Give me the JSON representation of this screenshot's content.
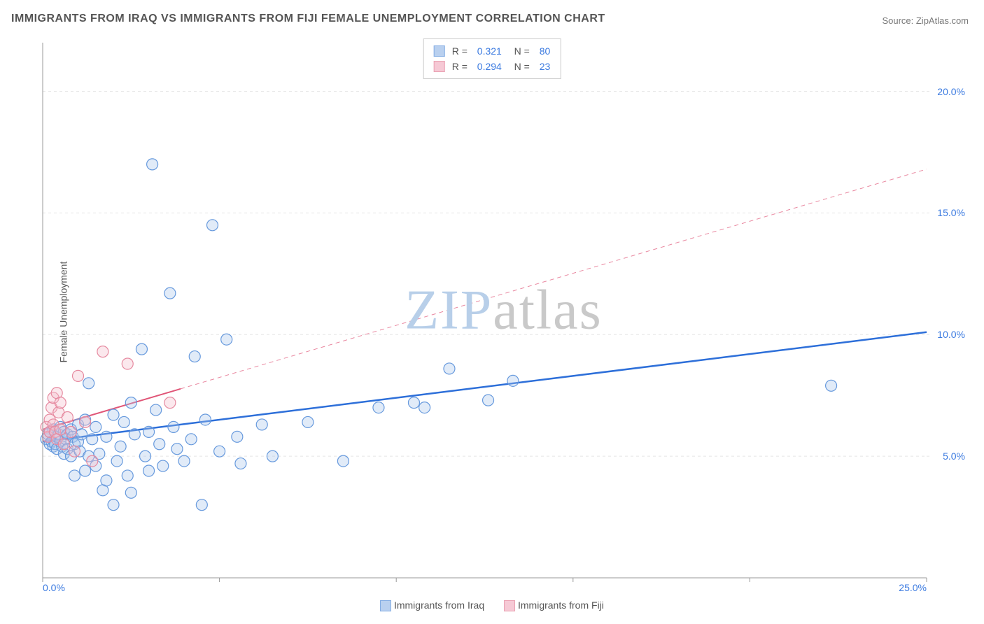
{
  "title": "IMMIGRANTS FROM IRAQ VS IMMIGRANTS FROM FIJI FEMALE UNEMPLOYMENT CORRELATION CHART",
  "source_label": "Source: ZipAtlas.com",
  "y_axis_label": "Female Unemployment",
  "watermark": {
    "zip": "ZIP",
    "atlas": "atlas",
    "color_zip": "#b8cfe9",
    "color_atlas": "#c9c9c9"
  },
  "chart": {
    "type": "scatter",
    "xlim": [
      0,
      25
    ],
    "ylim": [
      0,
      22
    ],
    "x_ticks": [
      0,
      5,
      10,
      15,
      20,
      25
    ],
    "y_ticks": [
      5,
      10,
      15,
      20
    ],
    "x_tick_labels": {
      "0": "0.0%",
      "25": "25.0%"
    },
    "y_tick_labels": {
      "5": "5.0%",
      "10": "10.0%",
      "15": "15.0%",
      "20": "20.0%"
    },
    "background_color": "#ffffff",
    "grid_color": "#e5e5e5",
    "grid_dash": "4,4",
    "axis_line_color": "#999999",
    "tick_mark_color": "#999999",
    "axis_label_color": "#3b7ae0",
    "marker_radius": 8,
    "marker_stroke_width": 1.2,
    "marker_fill_opacity": 0.35,
    "series": [
      {
        "name": "Immigrants from Iraq",
        "color_stroke": "#6699dd",
        "color_fill": "#a8c5ec",
        "trend_color": "#2d6fd9",
        "trend_width": 2.5,
        "trend_dashed_after_x": 25,
        "trend": {
          "x1": 0,
          "y1": 5.6,
          "x2": 25,
          "y2": 10.1
        },
        "r_value": "0.321",
        "n_value": "80",
        "points": [
          [
            0.1,
            5.7
          ],
          [
            0.15,
            5.9
          ],
          [
            0.2,
            5.5
          ],
          [
            0.2,
            6.0
          ],
          [
            0.25,
            5.6
          ],
          [
            0.3,
            5.4
          ],
          [
            0.3,
            6.1
          ],
          [
            0.35,
            5.5
          ],
          [
            0.4,
            5.8
          ],
          [
            0.4,
            5.3
          ],
          [
            0.45,
            5.9
          ],
          [
            0.5,
            5.6
          ],
          [
            0.5,
            6.2
          ],
          [
            0.55,
            5.4
          ],
          [
            0.6,
            5.1
          ],
          [
            0.6,
            6.0
          ],
          [
            0.65,
            5.7
          ],
          [
            0.7,
            5.9
          ],
          [
            0.7,
            5.3
          ],
          [
            0.8,
            5.0
          ],
          [
            0.8,
            6.1
          ],
          [
            0.85,
            5.8
          ],
          [
            0.9,
            5.5
          ],
          [
            0.9,
            4.2
          ],
          [
            1.0,
            5.6
          ],
          [
            1.0,
            6.3
          ],
          [
            1.05,
            5.2
          ],
          [
            1.1,
            5.9
          ],
          [
            1.2,
            4.4
          ],
          [
            1.2,
            6.5
          ],
          [
            1.3,
            5.0
          ],
          [
            1.3,
            8.0
          ],
          [
            1.4,
            5.7
          ],
          [
            1.5,
            4.6
          ],
          [
            1.5,
            6.2
          ],
          [
            1.6,
            5.1
          ],
          [
            1.7,
            3.6
          ],
          [
            1.8,
            5.8
          ],
          [
            1.8,
            4.0
          ],
          [
            2.0,
            3.0
          ],
          [
            2.0,
            6.7
          ],
          [
            2.1,
            4.8
          ],
          [
            2.2,
            5.4
          ],
          [
            2.3,
            6.4
          ],
          [
            2.4,
            4.2
          ],
          [
            2.5,
            3.5
          ],
          [
            2.5,
            7.2
          ],
          [
            2.6,
            5.9
          ],
          [
            2.8,
            9.4
          ],
          [
            2.9,
            5.0
          ],
          [
            3.0,
            6.0
          ],
          [
            3.0,
            4.4
          ],
          [
            3.1,
            17.0
          ],
          [
            3.2,
            6.9
          ],
          [
            3.3,
            5.5
          ],
          [
            3.4,
            4.6
          ],
          [
            3.6,
            11.7
          ],
          [
            3.7,
            6.2
          ],
          [
            3.8,
            5.3
          ],
          [
            4.0,
            4.8
          ],
          [
            4.2,
            5.7
          ],
          [
            4.3,
            9.1
          ],
          [
            4.5,
            3.0
          ],
          [
            4.6,
            6.5
          ],
          [
            4.8,
            14.5
          ],
          [
            5.0,
            5.2
          ],
          [
            5.2,
            9.8
          ],
          [
            5.5,
            5.8
          ],
          [
            5.6,
            4.7
          ],
          [
            6.2,
            6.3
          ],
          [
            6.5,
            5.0
          ],
          [
            7.5,
            6.4
          ],
          [
            8.5,
            4.8
          ],
          [
            9.5,
            7.0
          ],
          [
            10.5,
            7.2
          ],
          [
            10.8,
            7.0
          ],
          [
            11.5,
            8.6
          ],
          [
            12.6,
            7.3
          ],
          [
            13.3,
            8.1
          ],
          [
            22.3,
            7.9
          ]
        ]
      },
      {
        "name": "Immigrants from Fiji",
        "color_stroke": "#e68aa0",
        "color_fill": "#f4bccb",
        "trend_color": "#e05577",
        "trend_width": 2,
        "trend_dashed_after_x": 3.9,
        "trend": {
          "x1": 0,
          "y1": 6.1,
          "x2": 25,
          "y2": 16.8
        },
        "r_value": "0.294",
        "n_value": "23",
        "points": [
          [
            0.1,
            6.2
          ],
          [
            0.15,
            5.8
          ],
          [
            0.2,
            6.5
          ],
          [
            0.2,
            6.0
          ],
          [
            0.25,
            7.0
          ],
          [
            0.3,
            6.3
          ],
          [
            0.3,
            7.4
          ],
          [
            0.35,
            6.0
          ],
          [
            0.4,
            7.6
          ],
          [
            0.4,
            5.7
          ],
          [
            0.45,
            6.8
          ],
          [
            0.5,
            6.1
          ],
          [
            0.5,
            7.2
          ],
          [
            0.6,
            5.5
          ],
          [
            0.7,
            6.6
          ],
          [
            0.8,
            6.0
          ],
          [
            0.9,
            5.2
          ],
          [
            1.0,
            8.3
          ],
          [
            1.2,
            6.4
          ],
          [
            1.4,
            4.8
          ],
          [
            1.7,
            9.3
          ],
          [
            2.4,
            8.8
          ],
          [
            3.6,
            7.2
          ]
        ]
      }
    ],
    "top_legend": [
      {
        "series_idx": 0,
        "r_label": "R",
        "eq": "=",
        "n_label": "N"
      },
      {
        "series_idx": 1,
        "r_label": "R",
        "eq": "=",
        "n_label": "N"
      }
    ],
    "bottom_legend": [
      {
        "series_idx": 0
      },
      {
        "series_idx": 1
      }
    ]
  }
}
